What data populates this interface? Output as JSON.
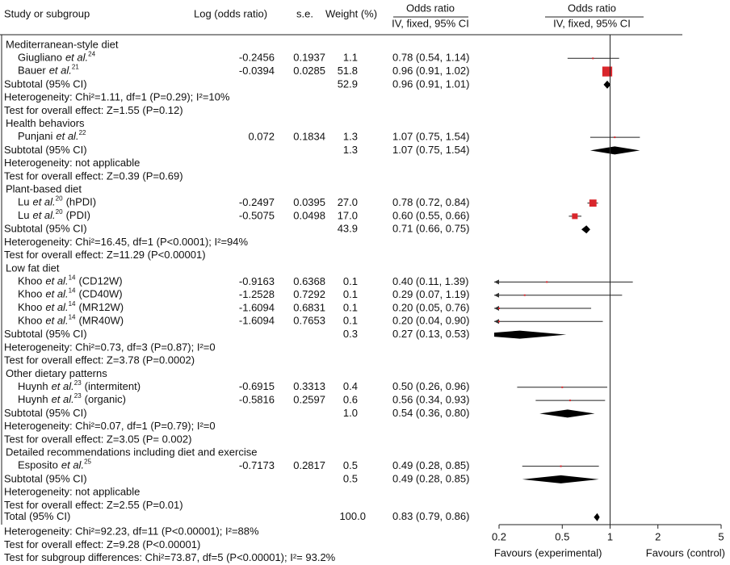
{
  "chart_data": {
    "type": "forest",
    "columns": {
      "study": "Study or subgroup",
      "log_or": "Log (odds ratio)",
      "se": "s.e.",
      "weight": "Weight (%)",
      "or_title": "Odds ratio",
      "or_method": "IV, fixed, 95% CI"
    },
    "et_al": "et al.",
    "subtotal_label": "Subtotal (95% CI)",
    "groups": [
      {
        "name": "Mediterranean-style diet",
        "studies": [
          {
            "author": "Giugliano",
            "ref": "24",
            "log_or": -0.2456,
            "se": 0.1937,
            "weight": 1.1,
            "or": 0.78,
            "ci": [
              0.54,
              1.14
            ],
            "or_label": "0.78 (0.54, 1.14)"
          },
          {
            "author": "Bauer",
            "ref": "21",
            "log_or": -0.0394,
            "se": 0.0285,
            "weight": 51.8,
            "or": 0.96,
            "ci": [
              0.91,
              1.02
            ],
            "or_label": "0.96 (0.91, 1.02)"
          }
        ],
        "subtotal": {
          "weight": 52.9,
          "or": 0.96,
          "ci": [
            0.91,
            1.01
          ],
          "or_label": "0.96 (0.91, 1.01)"
        },
        "heterogeneity": "Heterogeneity: Chi²=1.11, df=1 (P=0.29); I²=10%",
        "overall": "Test for overall effect: Z=1.55 (P=0.12)"
      },
      {
        "name": "Health behaviors",
        "studies": [
          {
            "author": "Punjani",
            "ref": "22",
            "log_or": 0.072,
            "se": 0.1834,
            "weight": 1.3,
            "or": 1.07,
            "ci": [
              0.75,
              1.54
            ],
            "or_label": "1.07 (0.75, 1.54)"
          }
        ],
        "subtotal": {
          "weight": 1.3,
          "or": 1.07,
          "ci": [
            0.75,
            1.54
          ],
          "or_label": "1.07 (0.75, 1.54)"
        },
        "heterogeneity": "Heterogeneity: not applicable",
        "overall": "Test for overall effect: Z=0.39 (P=0.69)"
      },
      {
        "name": "Plant-based diet",
        "studies": [
          {
            "author": "Lu",
            "ref": "20",
            "suffix": "(hPDI)",
            "log_or": -0.2497,
            "se": 0.0395,
            "weight": 27.0,
            "weight_label": "27.0",
            "or": 0.78,
            "ci": [
              0.72,
              0.84
            ],
            "or_label": "0.78 (0.72, 0.84)"
          },
          {
            "author": "Lu",
            "ref": "20",
            "suffix": "(PDI)",
            "log_or": -0.5075,
            "se": 0.0498,
            "weight": 17.0,
            "weight_label": "17.0",
            "or": 0.6,
            "ci": [
              0.55,
              0.66
            ],
            "or_label": "0.60 (0.55, 0.66)"
          }
        ],
        "subtotal": {
          "weight": 43.9,
          "or": 0.71,
          "ci": [
            0.66,
            0.75
          ],
          "or_label": "0.71 (0.66, 0.75)"
        },
        "heterogeneity": "Heterogeneity: Chi²=16.45, df=1 (P<0.0001); I²=94%",
        "overall": "Test for overall effect: Z=11.29 (P<0.00001)"
      },
      {
        "name": "Low fat diet",
        "studies": [
          {
            "author": "Khoo",
            "ref": "14",
            "suffix": "(CD12W)",
            "log_or": -0.9163,
            "se": 0.6368,
            "weight": 0.1,
            "or": 0.4,
            "ci": [
              0.11,
              1.39
            ],
            "or_label": "0.40 (0.11, 1.39)"
          },
          {
            "author": "Khoo",
            "ref": "14",
            "suffix": "(CD40W)",
            "log_or": -1.2528,
            "se": 0.7292,
            "weight": 0.1,
            "or": 0.29,
            "ci": [
              0.07,
              1.19
            ],
            "or_label": "0.29 (0.07, 1.19)"
          },
          {
            "author": "Khoo",
            "ref": "14",
            "suffix": "(MR12W)",
            "log_or": -1.6094,
            "se": 0.6831,
            "weight": 0.1,
            "or": 0.2,
            "ci": [
              0.05,
              0.76
            ],
            "or_label": "0.20 (0.05, 0.76)"
          },
          {
            "author": "Khoo",
            "ref": "14",
            "suffix": "(MR40W)",
            "log_or": -1.6094,
            "se": 0.7653,
            "weight": 0.1,
            "or": 0.2,
            "ci": [
              0.04,
              0.9
            ],
            "or_label": "0.20 (0.04, 0.90)"
          }
        ],
        "subtotal": {
          "weight": 0.3,
          "or": 0.27,
          "ci": [
            0.13,
            0.53
          ],
          "or_label": "0.27 (0.13, 0.53)"
        },
        "heterogeneity": "Heterogeneity: Chi²=0.73, df=3 (P=0.87); I²=0",
        "overall": "Test for overall effect: Z=3.78 (P=0.0002)"
      },
      {
        "name": "Other dietary patterns",
        "studies": [
          {
            "author": "Huynh",
            "ref": "23",
            "suffix": "(intermitent)",
            "log_or": -0.6915,
            "se": 0.3313,
            "weight": 0.4,
            "or": 0.5,
            "ci": [
              0.26,
              0.96
            ],
            "or_label": "0.50 (0.26, 0.96)"
          },
          {
            "author": "Huynh",
            "ref": "23",
            "suffix": "(organic)",
            "log_or": -0.5816,
            "se": 0.2597,
            "weight": 0.6,
            "or": 0.56,
            "ci": [
              0.34,
              0.93
            ],
            "or_label": "0.56 (0.34, 0.93)"
          }
        ],
        "subtotal": {
          "weight": 1.0,
          "weight_label": "1.0",
          "or": 0.54,
          "ci": [
            0.36,
            0.8
          ],
          "or_label": "0.54 (0.36, 0.80)"
        },
        "heterogeneity": "Heterogeneity: Chi²=0.07, df=1 (P=0.79); I²=0",
        "overall": "Test for overall effect: Z=3.05 (P= 0.002)"
      },
      {
        "name": "Detailed recommendations including diet and exercise",
        "studies": [
          {
            "author": "Esposito",
            "ref": "25",
            "log_or": -0.7173,
            "se": 0.2817,
            "weight": 0.5,
            "or": 0.49,
            "ci": [
              0.28,
              0.85
            ],
            "or_label": "0.49 (0.28, 0.85)"
          }
        ],
        "subtotal": {
          "weight": 0.5,
          "or": 0.49,
          "ci": [
            0.28,
            0.85
          ],
          "or_label": "0.49 (0.28, 0.85)"
        },
        "heterogeneity": "Heterogeneity: not applicable",
        "overall": "Test for overall effect: Z=2.55 (P=0.01)"
      }
    ],
    "total": {
      "label": "Total (95% CI)",
      "weight": 100.0,
      "weight_label": "100.0",
      "or": 0.83,
      "ci": [
        0.79,
        0.86
      ],
      "or_label": "0.83 (0.79, 0.86)",
      "heterogeneity": "Heterogeneity: Chi²=92.23, df=11 (P<0.00001); I²=88%",
      "overall": "Test for overall effect: Z=9.28 (P<0.00001)",
      "subgroup_diff": "Test for subgroup differences: Chi²=73.87, df=5 (P<0.00001); I²= 93.2%"
    },
    "xscale": "log",
    "xlim": [
      0.2,
      5
    ],
    "xticks": [
      0.2,
      0.5,
      1,
      2,
      5
    ],
    "x_label_left": "Favours (experimental)",
    "x_label_right": "Favours (control)",
    "square_color": "#d9262c",
    "diamond_color": "#000000"
  }
}
